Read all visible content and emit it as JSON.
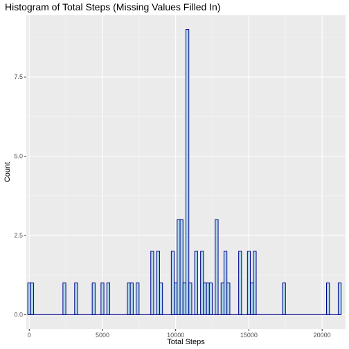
{
  "chart_data": {
    "type": "bar",
    "subtype": "histogram",
    "title": "Histogram of Total Steps (Missing Values Filled In)",
    "xlabel": "Total Steps",
    "ylabel": "Count",
    "xlim": [
      -200,
      21600
    ],
    "ylim": [
      -0.45,
      9.45
    ],
    "x_ticks": [
      0,
      5000,
      10000,
      15000,
      20000
    ],
    "x_tick_labels": [
      "0",
      "5000",
      "10000",
      "15000",
      "20000"
    ],
    "y_ticks": [
      0,
      2.5,
      5.0,
      7.5
    ],
    "y_tick_labels": [
      "0.0",
      "2.5",
      "5.0",
      "7.5"
    ],
    "binwidth": 200,
    "bins": [
      {
        "x": 0,
        "count": 1
      },
      {
        "x": 200,
        "count": 1
      },
      {
        "x": 2400,
        "count": 1
      },
      {
        "x": 3200,
        "count": 1
      },
      {
        "x": 4400,
        "count": 1
      },
      {
        "x": 5000,
        "count": 1
      },
      {
        "x": 5400,
        "count": 1
      },
      {
        "x": 6800,
        "count": 1
      },
      {
        "x": 7000,
        "count": 1
      },
      {
        "x": 7400,
        "count": 1
      },
      {
        "x": 8400,
        "count": 2
      },
      {
        "x": 8800,
        "count": 2
      },
      {
        "x": 9000,
        "count": 1
      },
      {
        "x": 9800,
        "count": 2
      },
      {
        "x": 10000,
        "count": 1
      },
      {
        "x": 10200,
        "count": 3
      },
      {
        "x": 10400,
        "count": 3
      },
      {
        "x": 10600,
        "count": 1
      },
      {
        "x": 10800,
        "count": 9
      },
      {
        "x": 11000,
        "count": 1
      },
      {
        "x": 11400,
        "count": 2
      },
      {
        "x": 11800,
        "count": 2
      },
      {
        "x": 12000,
        "count": 1
      },
      {
        "x": 12200,
        "count": 1
      },
      {
        "x": 12400,
        "count": 1
      },
      {
        "x": 12800,
        "count": 3
      },
      {
        "x": 13200,
        "count": 1
      },
      {
        "x": 13400,
        "count": 2
      },
      {
        "x": 13600,
        "count": 1
      },
      {
        "x": 14400,
        "count": 2
      },
      {
        "x": 15000,
        "count": 2
      },
      {
        "x": 15200,
        "count": 1
      },
      {
        "x": 15400,
        "count": 2
      },
      {
        "x": 17400,
        "count": 1
      },
      {
        "x": 20400,
        "count": 1
      },
      {
        "x": 21200,
        "count": 1
      }
    ],
    "grid": true,
    "colors": {
      "fill": "#add8e6",
      "outline": "#00008b",
      "panel": "#ebebeb",
      "grid_major": "#ffffff",
      "grid_minor": "#f5f5f5"
    }
  }
}
